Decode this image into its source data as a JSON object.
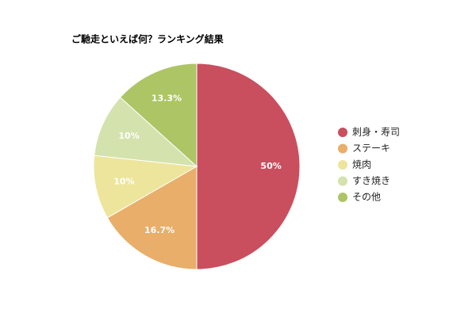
{
  "chart_data": {
    "type": "pie",
    "title": "ご馳走といえば何？ランキング結果",
    "categories": [
      "刺身・寿司",
      "ステーキ",
      "焼肉",
      "すき焼き",
      "その他"
    ],
    "values": [
      50,
      16.7,
      10,
      10,
      13.3
    ],
    "value_labels": [
      "50%",
      "16.7%",
      "10%",
      "10%",
      "13.3%"
    ],
    "colors": [
      "#c94f5e",
      "#e8ae6a",
      "#ede59c",
      "#d4e2ad",
      "#adc565"
    ],
    "legend": "right"
  }
}
